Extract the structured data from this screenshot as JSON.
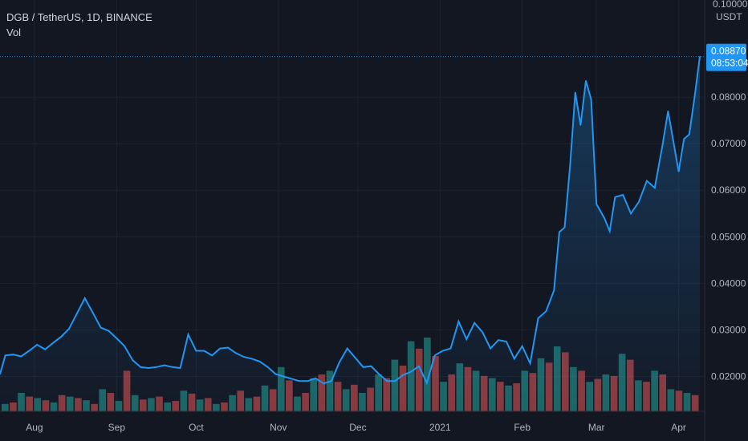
{
  "header": {
    "symbol_line": "DGB / TetherUS, 1D, BINANCE",
    "volume_label": "Vol"
  },
  "price_axis": {
    "currency": "USDT",
    "top_tick": "0.10000"
  },
  "last_price": {
    "value": "0.08870",
    "countdown": "08:53:04"
  },
  "colors": {
    "background": "#131722",
    "line": "#2196f3",
    "up_volume": "#26a69a",
    "down_volume": "#ef5350",
    "grid": "#1e222d",
    "tag": "#2196f3"
  },
  "chart_data": {
    "type": "area",
    "ylim": [
      0.0125,
      0.1
    ],
    "yticks": [
      {
        "value": 0.08,
        "label": "0.08000"
      },
      {
        "value": 0.07,
        "label": "0.07000"
      },
      {
        "value": 0.06,
        "label": "0.06000"
      },
      {
        "value": 0.05,
        "label": "0.05000"
      },
      {
        "value": 0.04,
        "label": "0.04000"
      },
      {
        "value": 0.03,
        "label": "0.03000"
      },
      {
        "value": 0.02,
        "label": "0.02000"
      }
    ],
    "x_domain": [
      "2020-07-19",
      "2021-04-09"
    ],
    "xticks": [
      {
        "date": "2020-08-01",
        "label": "Aug"
      },
      {
        "date": "2020-09-01",
        "label": "Sep"
      },
      {
        "date": "2020-10-01",
        "label": "Oct"
      },
      {
        "date": "2020-11-01",
        "label": "Nov"
      },
      {
        "date": "2020-12-01",
        "label": "Dec"
      },
      {
        "date": "2021-01-01",
        "label": "2021"
      },
      {
        "date": "2021-02-01",
        "label": "Feb"
      },
      {
        "date": "2021-03-01",
        "label": "Mar"
      },
      {
        "date": "2021-04-01",
        "label": "Apr"
      }
    ],
    "series": [
      {
        "points": [
          [
            "2020-07-19",
            0.0205
          ],
          [
            "2020-07-21",
            0.0245
          ],
          [
            "2020-07-24",
            0.0247
          ],
          [
            "2020-07-27",
            0.0243
          ],
          [
            "2020-07-30",
            0.0255
          ],
          [
            "2020-08-02",
            0.0268
          ],
          [
            "2020-08-05",
            0.0258
          ],
          [
            "2020-08-08",
            0.0272
          ],
          [
            "2020-08-11",
            0.0285
          ],
          [
            "2020-08-14",
            0.0302
          ],
          [
            "2020-08-17",
            0.0335
          ],
          [
            "2020-08-20",
            0.0368
          ],
          [
            "2020-08-23",
            0.0337
          ],
          [
            "2020-08-26",
            0.0305
          ],
          [
            "2020-08-29",
            0.0298
          ],
          [
            "2020-09-01",
            0.0282
          ],
          [
            "2020-09-04",
            0.0265
          ],
          [
            "2020-09-07",
            0.0235
          ],
          [
            "2020-09-10",
            0.022
          ],
          [
            "2020-09-13",
            0.0218
          ],
          [
            "2020-09-16",
            0.022
          ],
          [
            "2020-09-19",
            0.0224
          ],
          [
            "2020-09-22",
            0.022
          ],
          [
            "2020-09-25",
            0.0218
          ],
          [
            "2020-09-28",
            0.029
          ],
          [
            "2020-10-01",
            0.0255
          ],
          [
            "2020-10-04",
            0.0255
          ],
          [
            "2020-10-07",
            0.0245
          ],
          [
            "2020-10-10",
            0.026
          ],
          [
            "2020-10-13",
            0.0262
          ],
          [
            "2020-10-16",
            0.025
          ],
          [
            "2020-10-19",
            0.0242
          ],
          [
            "2020-10-22",
            0.0238
          ],
          [
            "2020-10-25",
            0.0232
          ],
          [
            "2020-10-28",
            0.022
          ],
          [
            "2020-10-31",
            0.0205
          ],
          [
            "2020-11-03",
            0.02
          ],
          [
            "2020-11-06",
            0.0195
          ],
          [
            "2020-11-09",
            0.019
          ],
          [
            "2020-11-12",
            0.019
          ],
          [
            "2020-11-15",
            0.0196
          ],
          [
            "2020-11-18",
            0.0185
          ],
          [
            "2020-11-21",
            0.019
          ],
          [
            "2020-11-24",
            0.023
          ],
          [
            "2020-11-27",
            0.026
          ],
          [
            "2020-11-30",
            0.024
          ],
          [
            "2020-12-03",
            0.022
          ],
          [
            "2020-12-06",
            0.0222
          ],
          [
            "2020-12-09",
            0.0205
          ],
          [
            "2020-12-12",
            0.019
          ],
          [
            "2020-12-15",
            0.019
          ],
          [
            "2020-12-18",
            0.0203
          ],
          [
            "2020-12-21",
            0.021
          ],
          [
            "2020-12-24",
            0.0222
          ],
          [
            "2020-12-27",
            0.0186
          ],
          [
            "2020-12-30",
            0.0245
          ],
          [
            "2021-01-02",
            0.0255
          ],
          [
            "2021-01-05",
            0.026
          ],
          [
            "2021-01-08",
            0.0318
          ],
          [
            "2021-01-11",
            0.028
          ],
          [
            "2021-01-14",
            0.0315
          ],
          [
            "2021-01-17",
            0.0295
          ],
          [
            "2021-01-20",
            0.026
          ],
          [
            "2021-01-23",
            0.0278
          ],
          [
            "2021-01-26",
            0.0275
          ],
          [
            "2021-01-29",
            0.0238
          ],
          [
            "2021-02-01",
            0.0265
          ],
          [
            "2021-02-04",
            0.0228
          ],
          [
            "2021-02-07",
            0.0325
          ],
          [
            "2021-02-10",
            0.034
          ],
          [
            "2021-02-13",
            0.0385
          ],
          [
            "2021-02-15",
            0.051
          ],
          [
            "2021-02-17",
            0.052
          ],
          [
            "2021-02-19",
            0.065
          ],
          [
            "2021-02-21",
            0.081
          ],
          [
            "2021-02-23",
            0.074
          ],
          [
            "2021-02-25",
            0.0835
          ],
          [
            "2021-02-27",
            0.0795
          ],
          [
            "2021-03-01",
            0.057
          ],
          [
            "2021-03-04",
            0.054
          ],
          [
            "2021-03-06",
            0.0512
          ],
          [
            "2021-03-08",
            0.0585
          ],
          [
            "2021-03-11",
            0.059
          ],
          [
            "2021-03-14",
            0.055
          ],
          [
            "2021-03-17",
            0.0575
          ],
          [
            "2021-03-20",
            0.062
          ],
          [
            "2021-03-23",
            0.0605
          ],
          [
            "2021-03-26",
            0.07
          ],
          [
            "2021-03-28",
            0.077
          ],
          [
            "2021-03-30",
            0.0705
          ],
          [
            "2021-04-01",
            0.064
          ],
          [
            "2021-04-03",
            0.071
          ],
          [
            "2021-04-05",
            0.072
          ],
          [
            "2021-04-07",
            0.08
          ],
          [
            "2021-04-09",
            0.0887
          ]
        ]
      }
    ],
    "volume": {
      "up": [
        0.1,
        0.25,
        0.18,
        0.12,
        0.2,
        0.15,
        0.3,
        0.14,
        0.22,
        0.18,
        0.12,
        0.28,
        0.16,
        0.1,
        0.22,
        0.18,
        0.35,
        0.6,
        0.2,
        0.45,
        0.55,
        0.3,
        0.25,
        0.5,
        0.7,
        0.95,
        1.0,
        0.4,
        0.65,
        0.55,
        0.45,
        0.35,
        0.55,
        0.72,
        0.88,
        0.6,
        0.4,
        0.5,
        0.78,
        0.42,
        0.55,
        0.3,
        0.25
      ],
      "down": [
        0.12,
        0.2,
        0.15,
        0.22,
        0.18,
        0.1,
        0.25,
        0.55,
        0.16,
        0.2,
        0.14,
        0.24,
        0.18,
        0.12,
        0.28,
        0.2,
        0.3,
        0.42,
        0.25,
        0.5,
        0.4,
        0.36,
        0.32,
        0.45,
        0.62,
        0.85,
        0.75,
        0.5,
        0.6,
        0.48,
        0.4,
        0.38,
        0.52,
        0.66,
        0.8,
        0.55,
        0.44,
        0.48,
        0.7,
        0.4,
        0.5,
        0.28,
        0.22
      ]
    }
  }
}
